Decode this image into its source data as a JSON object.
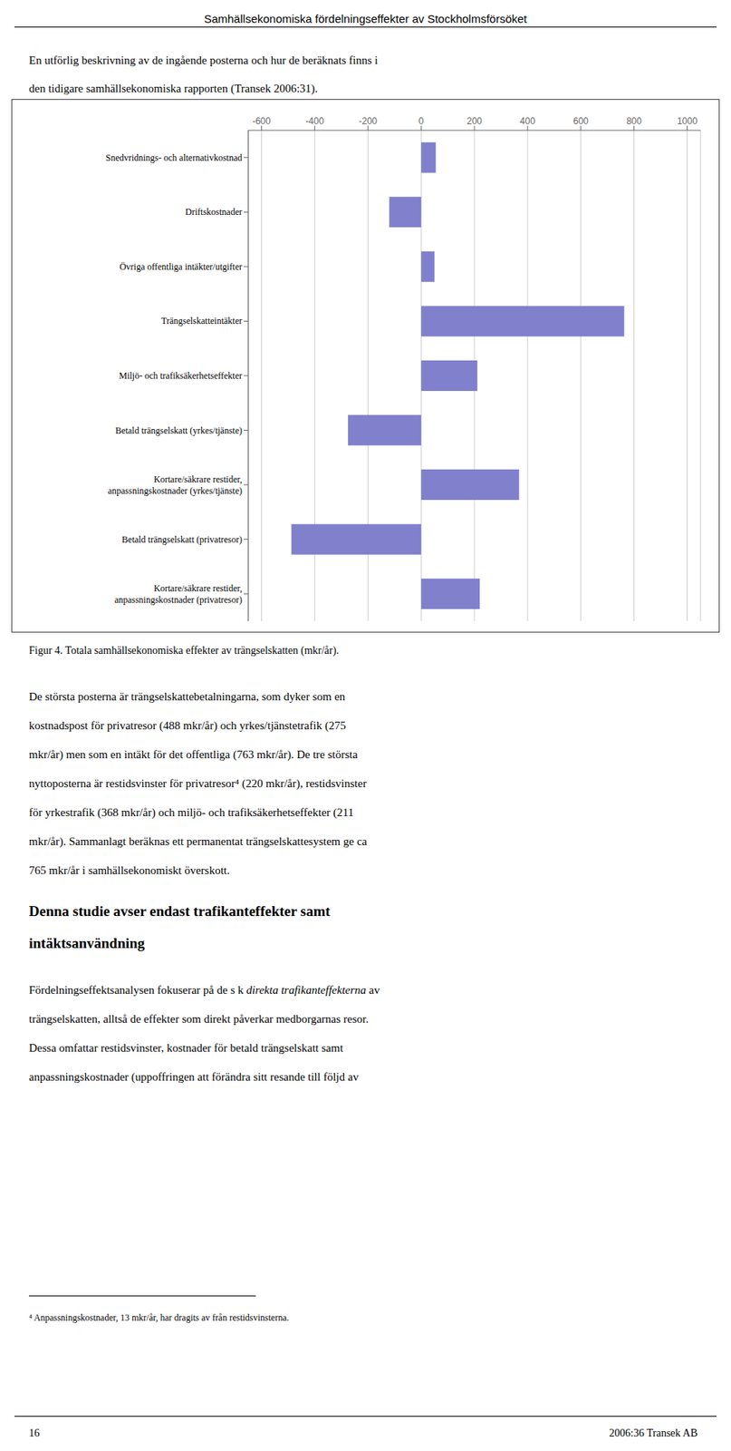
{
  "chart_data": {
    "type": "bar",
    "orientation": "horizontal",
    "title": "Figur 4. Totala samhällsekonomiska effekter av trängselskatten (mkr/år).",
    "categories": [
      "Kortare/säkrare restider,\nanpassningskostnader (privatresor)",
      "Betald trängselskatt (privatresor)",
      "Kortare/säkrare restider,\nanpassningskostnader (yrkes/tjänste)",
      "Betald trängselskatt (yrkes/tjänste)",
      "Miljö- och trafiksäkerhetseffekter",
      "Trängselskatteintäkter",
      "Övriga offentliga intäkter/utgifter",
      "Driftskostnader",
      "Snedvridnings- och alternativkostnad"
    ],
    "values": [
      220,
      -488,
      368,
      -275,
      211,
      763,
      50,
      -120,
      55
    ],
    "color": "#8080CC",
    "xlim": [
      -650,
      1050
    ],
    "xticks": [
      -600,
      -400,
      -200,
      0,
      200,
      400,
      600,
      800,
      1000
    ],
    "grid": true,
    "annotations": [
      "Samhällsekonomiska fördelningseffekter av Stockholmsförsöket",
      "En utförlig beskrivning av de ingående posterna och hur de beräknats finns i",
      "den tidigare samhällsekonomiska rapporten (Transek 2006:31).",
      "De största posterna är trängselskattebetalningarna, som dyker som en",
      "kostnadspost för privatresor (488 mkr/år) och yrkes/tjänstetrafik (275",
      "mkr/år) men som en intäkt för det offentliga (763 mkr/år). De tre största",
      "nyttoposterna är restidsvinster för privatresor⁴ (220 mkr/år), restidsvinster",
      "för yrkestrafik (368 mkr/år) och miljö- och trafiksäkerhetseffekter (211",
      "mkr/år). Sammanlagt beräknas ett permanentat trängselskattesystem ge ca",
      "765 mkr/år i samhällsekonomiskt överskott.",
      "Denna studie avser endast trafikanteffekter samt",
      "intäktsanvändning",
      "Fördelningseffektsanalysen fokuserar på de s k ",
      "direkta trafikanteffekterna",
      " av",
      "trängselskatten, alltså de effekter som direkt påverkar medborgarnas resor.",
      "Dessa omfattar restidsvinster, kostnader för betald trängselskatt samt",
      "anpassningskostnader (uppoffringen att förändra sitt resande till följd av",
      "⁴ Anpassningskostnader, 13 mkr/år, har dragits av från restidsvinsterna.",
      "16",
      "2006:36 Transek AB"
    ]
  }
}
